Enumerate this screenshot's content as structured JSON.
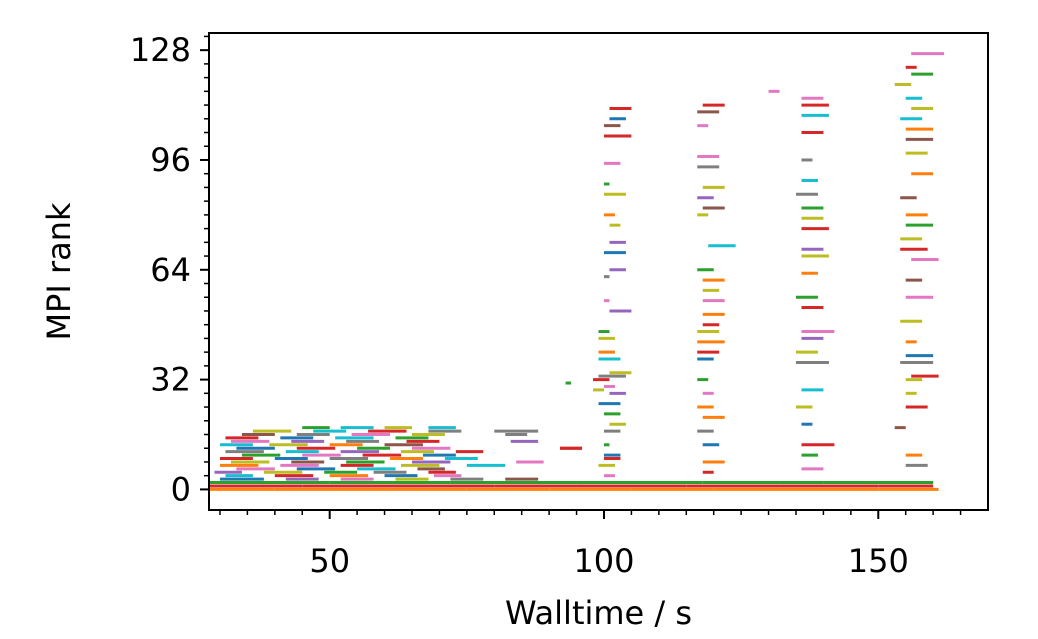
{
  "chart_data": {
    "type": "timeline",
    "title": "",
    "xlabel": "Walltime / s",
    "ylabel": "MPI rank",
    "xlim": [
      28,
      170
    ],
    "ylim": [
      -6,
      133
    ],
    "x_ticks": [
      50,
      100,
      150
    ],
    "x_tick_labels": [
      "50",
      "100",
      "150"
    ],
    "x_minor_ticks": [
      30,
      35,
      40,
      45,
      55,
      60,
      65,
      70,
      75,
      80,
      85,
      90,
      95,
      105,
      110,
      115,
      120,
      125,
      130,
      135,
      140,
      145,
      155,
      160,
      165
    ],
    "y_ticks": [
      0,
      32,
      64,
      96,
      128
    ],
    "y_tick_labels": [
      "0",
      "32",
      "64",
      "96",
      "128"
    ],
    "y_minor_step": 4,
    "grid": false,
    "legend": "none",
    "palette": [
      "#1f77b4",
      "#ff7f0e",
      "#2ca02c",
      "#d62728",
      "#9467bd",
      "#8c564b",
      "#e377c2",
      "#7f7f7f",
      "#bcbd22",
      "#17becf"
    ],
    "segments_note": "Each segment: [rank, start_s, end_s, color_index]",
    "segments": [
      [
        0,
        28,
        40,
        1
      ],
      [
        0,
        40,
        60,
        1
      ],
      [
        0,
        60,
        75,
        1
      ],
      [
        0,
        75,
        90,
        1
      ],
      [
        0,
        90,
        105,
        1
      ],
      [
        0,
        105,
        120,
        1
      ],
      [
        0,
        120,
        135,
        1
      ],
      [
        0,
        135,
        150,
        1
      ],
      [
        0,
        150,
        161,
        1
      ],
      [
        1,
        28,
        45,
        3
      ],
      [
        1,
        45,
        62,
        3
      ],
      [
        1,
        62,
        80,
        3
      ],
      [
        1,
        80,
        97,
        3
      ],
      [
        1,
        97,
        115,
        3
      ],
      [
        1,
        115,
        132,
        3
      ],
      [
        1,
        132,
        150,
        3
      ],
      [
        1,
        150,
        160,
        3
      ],
      [
        2,
        28,
        50,
        2
      ],
      [
        2,
        50,
        72,
        2
      ],
      [
        2,
        72,
        95,
        2
      ],
      [
        2,
        95,
        118,
        2
      ],
      [
        2,
        118,
        140,
        2
      ],
      [
        2,
        140,
        160,
        2
      ],
      [
        3,
        30,
        38,
        0
      ],
      [
        3,
        42,
        48,
        4
      ],
      [
        3,
        52,
        58,
        6
      ],
      [
        3,
        62,
        68,
        8
      ],
      [
        3,
        72,
        78,
        7
      ],
      [
        3,
        82,
        88,
        5
      ],
      [
        4,
        31,
        36,
        9
      ],
      [
        4,
        40,
        47,
        3
      ],
      [
        4,
        50,
        57,
        1
      ],
      [
        4,
        60,
        66,
        0
      ],
      [
        4,
        69,
        74,
        6
      ],
      [
        5,
        29,
        34,
        4
      ],
      [
        5,
        38,
        45,
        8
      ],
      [
        5,
        49,
        55,
        2
      ],
      [
        5,
        58,
        64,
        7
      ],
      [
        5,
        68,
        73,
        3
      ],
      [
        6,
        33,
        40,
        6
      ],
      [
        6,
        44,
        51,
        0
      ],
      [
        6,
        55,
        62,
        9
      ],
      [
        6,
        66,
        71,
        5
      ],
      [
        7,
        30,
        37,
        1
      ],
      [
        7,
        41,
        48,
        6
      ],
      [
        7,
        52,
        58,
        3
      ],
      [
        7,
        63,
        70,
        8
      ],
      [
        7,
        75,
        82,
        9
      ],
      [
        8,
        32,
        39,
        8
      ],
      [
        8,
        43,
        49,
        5
      ],
      [
        8,
        53,
        60,
        2
      ],
      [
        8,
        65,
        72,
        4
      ],
      [
        8,
        84,
        89,
        6
      ],
      [
        9,
        30,
        36,
        3
      ],
      [
        9,
        40,
        46,
        0
      ],
      [
        9,
        50,
        57,
        7
      ],
      [
        9,
        61,
        67,
        1
      ],
      [
        9,
        71,
        77,
        9
      ],
      [
        10,
        34,
        41,
        2
      ],
      [
        10,
        45,
        52,
        6
      ],
      [
        10,
        56,
        63,
        3
      ],
      [
        10,
        67,
        73,
        0
      ],
      [
        11,
        31,
        38,
        7
      ],
      [
        11,
        42,
        48,
        9
      ],
      [
        11,
        52,
        59,
        4
      ],
      [
        11,
        63,
        69,
        8
      ],
      [
        11,
        73,
        78,
        3
      ],
      [
        12,
        33,
        40,
        0
      ],
      [
        12,
        44,
        51,
        3
      ],
      [
        12,
        55,
        61,
        2
      ],
      [
        12,
        65,
        72,
        6
      ],
      [
        12,
        92,
        96,
        3
      ],
      [
        13,
        30,
        36,
        9
      ],
      [
        13,
        39,
        46,
        8
      ],
      [
        13,
        50,
        56,
        1
      ],
      [
        13,
        60,
        67,
        5
      ],
      [
        14,
        32,
        39,
        6
      ],
      [
        14,
        43,
        49,
        4
      ],
      [
        14,
        53,
        59,
        7
      ],
      [
        14,
        64,
        70,
        3
      ],
      [
        14,
        83,
        88,
        4
      ],
      [
        15,
        31,
        37,
        3
      ],
      [
        15,
        41,
        47,
        0
      ],
      [
        15,
        51,
        58,
        9
      ],
      [
        15,
        62,
        68,
        2
      ],
      [
        16,
        34,
        40,
        5
      ],
      [
        16,
        44,
        50,
        7
      ],
      [
        16,
        54,
        61,
        6
      ],
      [
        16,
        65,
        71,
        8
      ],
      [
        16,
        82,
        86,
        7
      ],
      [
        17,
        36,
        43,
        8
      ],
      [
        17,
        47,
        53,
        9
      ],
      [
        17,
        57,
        64,
        3
      ],
      [
        17,
        68,
        74,
        7
      ],
      [
        17,
        80,
        88,
        7
      ],
      [
        18,
        45,
        50,
        2
      ],
      [
        18,
        52,
        58,
        9
      ],
      [
        18,
        60,
        65,
        8
      ],
      [
        18,
        68,
        73,
        9
      ],
      [
        31,
        93,
        94,
        2
      ],
      [
        32,
        98,
        101,
        3
      ],
      [
        33,
        99,
        104,
        7
      ],
      [
        34,
        101,
        105,
        8
      ],
      [
        30,
        100,
        102,
        6
      ],
      [
        29,
        98,
        100,
        8
      ],
      [
        28,
        101,
        104,
        4
      ],
      [
        25,
        99,
        103,
        0
      ],
      [
        22,
        100,
        103,
        2
      ],
      [
        19,
        101,
        104,
        8
      ],
      [
        17,
        100,
        103,
        7
      ],
      [
        13,
        100,
        101,
        2
      ],
      [
        12,
        92,
        96,
        3
      ],
      [
        10,
        100,
        103,
        0
      ],
      [
        9,
        100,
        103,
        3
      ],
      [
        7,
        99,
        102,
        8
      ],
      [
        4,
        100,
        102,
        6
      ],
      [
        38,
        99,
        103,
        9
      ],
      [
        40,
        99,
        102,
        1
      ],
      [
        44,
        99,
        102,
        8
      ],
      [
        46,
        99,
        101,
        2
      ],
      [
        52,
        101,
        105,
        4
      ],
      [
        55,
        100,
        101,
        6
      ],
      [
        62,
        100,
        101,
        7
      ],
      [
        64,
        101,
        104,
        4
      ],
      [
        69,
        100,
        104,
        0
      ],
      [
        72,
        101,
        104,
        4
      ],
      [
        77,
        101,
        103,
        8
      ],
      [
        80,
        100,
        102,
        1
      ],
      [
        86,
        100,
        104,
        8
      ],
      [
        89,
        100,
        101,
        2
      ],
      [
        95,
        100,
        103,
        6
      ],
      [
        103,
        100,
        105,
        3
      ],
      [
        106,
        100,
        103,
        5
      ],
      [
        108,
        101,
        104,
        0
      ],
      [
        111,
        101,
        105,
        3
      ],
      [
        112,
        118,
        122,
        3
      ],
      [
        110,
        117,
        121,
        5
      ],
      [
        106,
        117,
        119,
        6
      ],
      [
        97,
        117,
        121,
        6
      ],
      [
        94,
        117,
        121,
        7
      ],
      [
        88,
        118,
        122,
        8
      ],
      [
        85,
        117,
        120,
        4
      ],
      [
        82,
        118,
        122,
        5
      ],
      [
        80,
        117,
        119,
        8
      ],
      [
        71,
        119,
        124,
        9
      ],
      [
        64,
        117,
        120,
        2
      ],
      [
        61,
        118,
        122,
        1
      ],
      [
        58,
        118,
        121,
        8
      ],
      [
        55,
        118,
        122,
        6
      ],
      [
        51,
        118,
        122,
        1
      ],
      [
        48,
        118,
        121,
        3
      ],
      [
        46,
        117,
        121,
        8
      ],
      [
        43,
        117,
        122,
        1
      ],
      [
        40,
        117,
        121,
        3
      ],
      [
        38,
        117,
        120,
        0
      ],
      [
        32,
        117,
        119,
        2
      ],
      [
        28,
        118,
        120,
        6
      ],
      [
        24,
        117,
        120,
        1
      ],
      [
        21,
        118,
        122,
        1
      ],
      [
        17,
        117,
        120,
        7
      ],
      [
        13,
        118,
        121,
        0
      ],
      [
        8,
        118,
        122,
        1
      ],
      [
        5,
        118,
        120,
        3
      ],
      [
        116,
        130,
        132,
        6
      ],
      [
        114,
        136,
        140,
        6
      ],
      [
        112,
        136,
        141,
        3
      ],
      [
        109,
        136,
        141,
        9
      ],
      [
        104,
        136,
        140,
        3
      ],
      [
        96,
        136,
        138,
        7
      ],
      [
        90,
        136,
        139,
        9
      ],
      [
        86,
        135,
        139,
        7
      ],
      [
        82,
        136,
        140,
        2
      ],
      [
        79,
        136,
        140,
        8
      ],
      [
        76,
        136,
        141,
        3
      ],
      [
        70,
        136,
        140,
        4
      ],
      [
        68,
        136,
        141,
        8
      ],
      [
        63,
        136,
        139,
        1
      ],
      [
        56,
        135,
        139,
        2
      ],
      [
        53,
        136,
        140,
        3
      ],
      [
        46,
        136,
        142,
        6
      ],
      [
        44,
        136,
        140,
        4
      ],
      [
        40,
        135,
        139,
        8
      ],
      [
        37,
        135,
        141,
        7
      ],
      [
        29,
        136,
        140,
        9
      ],
      [
        24,
        135,
        138,
        8
      ],
      [
        19,
        136,
        138,
        0
      ],
      [
        13,
        136,
        142,
        3
      ],
      [
        10,
        136,
        139,
        2
      ],
      [
        6,
        136,
        140,
        6
      ],
      [
        127,
        156,
        162,
        6
      ],
      [
        123,
        155,
        157,
        3
      ],
      [
        121,
        156,
        160,
        2
      ],
      [
        118,
        153,
        156,
        8
      ],
      [
        114,
        155,
        158,
        9
      ],
      [
        111,
        156,
        160,
        8
      ],
      [
        108,
        154,
        158,
        9
      ],
      [
        105,
        155,
        160,
        1
      ],
      [
        102,
        155,
        160,
        5
      ],
      [
        98,
        155,
        159,
        8
      ],
      [
        92,
        156,
        160,
        1
      ],
      [
        85,
        154,
        157,
        5
      ],
      [
        80,
        155,
        159,
        1
      ],
      [
        77,
        155,
        160,
        2
      ],
      [
        73,
        154,
        158,
        8
      ],
      [
        70,
        154,
        159,
        3
      ],
      [
        67,
        156,
        161,
        6
      ],
      [
        61,
        155,
        158,
        5
      ],
      [
        56,
        155,
        160,
        6
      ],
      [
        49,
        154,
        158,
        8
      ],
      [
        43,
        155,
        157,
        1
      ],
      [
        39,
        155,
        160,
        0
      ],
      [
        37,
        154,
        160,
        7
      ],
      [
        33,
        156,
        161,
        3
      ],
      [
        32,
        155,
        158,
        8
      ],
      [
        28,
        155,
        157,
        8
      ],
      [
        24,
        155,
        159,
        3
      ],
      [
        18,
        153,
        155,
        5
      ],
      [
        10,
        155,
        158,
        1
      ],
      [
        7,
        155,
        159,
        7
      ]
    ]
  }
}
